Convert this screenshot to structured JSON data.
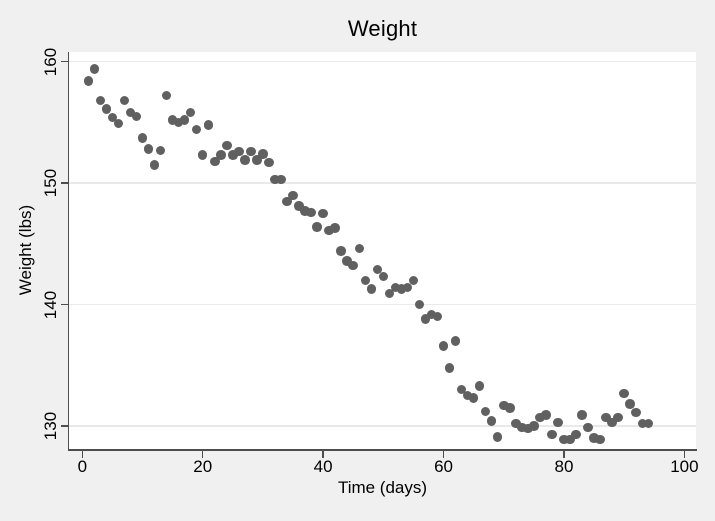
{
  "title": "Weight",
  "colors": {
    "figure_bg": "#f0f0f1",
    "plot_bg": "#ffffff",
    "grid": "#e9e9e9",
    "axis": "#4d4d4d",
    "marker": "#606060",
    "text": "#000000"
  },
  "chart_data": {
    "type": "scatter",
    "title": "Weight",
    "xlabel": "Time (days)",
    "ylabel": "Weight (lbs)",
    "xlim": [
      -2.2,
      102
    ],
    "ylim": [
      128.1,
      160.8
    ],
    "xticks": [
      0,
      20,
      40,
      60,
      80,
      100
    ],
    "yticks": [
      130,
      140,
      150,
      160
    ],
    "grid": "horizontal-only",
    "legend": "none",
    "marker_style": "filled-circle-gray",
    "points": [
      [
        1,
        158.4
      ],
      [
        2,
        159.4
      ],
      [
        3,
        156.8
      ],
      [
        4,
        156.1
      ],
      [
        5,
        155.4
      ],
      [
        6,
        154.9
      ],
      [
        7,
        156.8
      ],
      [
        8,
        155.8
      ],
      [
        9,
        155.5
      ],
      [
        10,
        153.7
      ],
      [
        11,
        152.8
      ],
      [
        12,
        151.5
      ],
      [
        13,
        152.7
      ],
      [
        14,
        157.2
      ],
      [
        15,
        155.2
      ],
      [
        16,
        155.0
      ],
      [
        17,
        155.2
      ],
      [
        18,
        155.8
      ],
      [
        19,
        154.4
      ],
      [
        20,
        152.3
      ],
      [
        21,
        154.8
      ],
      [
        22,
        151.8
      ],
      [
        23,
        152.3
      ],
      [
        24,
        153.1
      ],
      [
        25,
        152.3
      ],
      [
        26,
        152.6
      ],
      [
        27,
        151.9
      ],
      [
        28,
        152.6
      ],
      [
        29,
        151.9
      ],
      [
        30,
        152.4
      ],
      [
        31,
        151.7
      ],
      [
        32,
        150.3
      ],
      [
        33,
        150.3
      ],
      [
        34,
        148.5
      ],
      [
        35,
        149.0
      ],
      [
        36,
        148.1
      ],
      [
        37,
        147.7
      ],
      [
        38,
        147.6
      ],
      [
        39,
        146.4
      ],
      [
        40,
        147.5
      ],
      [
        41,
        146.1
      ],
      [
        42,
        146.3
      ],
      [
        43,
        144.4
      ],
      [
        44,
        143.6
      ],
      [
        45,
        143.2
      ],
      [
        46,
        144.6
      ],
      [
        47,
        142.0
      ],
      [
        48,
        141.3
      ],
      [
        49,
        142.9
      ],
      [
        50,
        142.3
      ],
      [
        51,
        140.9
      ],
      [
        52,
        141.4
      ],
      [
        53,
        141.3
      ],
      [
        54,
        141.4
      ],
      [
        55,
        142.0
      ],
      [
        56,
        140.0
      ],
      [
        57,
        138.8
      ],
      [
        58,
        139.2
      ],
      [
        59,
        139.0
      ],
      [
        60,
        136.6
      ],
      [
        61,
        134.8
      ],
      [
        62,
        137.0
      ],
      [
        63,
        133.0
      ],
      [
        64,
        132.5
      ],
      [
        65,
        132.3
      ],
      [
        66,
        133.3
      ],
      [
        67,
        131.2
      ],
      [
        68,
        130.4
      ],
      [
        69,
        129.1
      ],
      [
        70,
        131.7
      ],
      [
        71,
        131.5
      ],
      [
        72,
        130.2
      ],
      [
        73,
        129.9
      ],
      [
        74,
        129.8
      ],
      [
        75,
        130.0
      ],
      [
        76,
        130.7
      ],
      [
        77,
        130.9
      ],
      [
        78,
        129.3
      ],
      [
        79,
        130.3
      ],
      [
        80,
        128.9
      ],
      [
        81,
        128.9
      ],
      [
        82,
        129.3
      ],
      [
        83,
        130.9
      ],
      [
        84,
        129.9
      ],
      [
        85,
        129.0
      ],
      [
        86,
        128.9
      ],
      [
        87,
        130.7
      ],
      [
        88,
        130.3
      ],
      [
        89,
        130.7
      ],
      [
        90,
        132.7
      ],
      [
        91,
        131.8
      ],
      [
        92,
        131.1
      ],
      [
        93,
        130.2
      ],
      [
        94,
        130.2
      ]
    ]
  }
}
